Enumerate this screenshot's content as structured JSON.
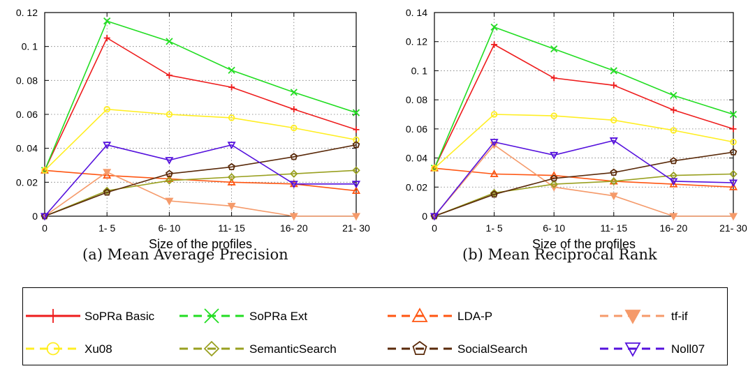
{
  "captions": {
    "a": "(a) Mean Average Precision",
    "b": "(b) Mean Reciprocal Rank"
  },
  "chart_data": [
    {
      "type": "line",
      "xlabel": "Size of the profiles",
      "ylabel": "",
      "categories": [
        "0",
        "1- 5",
        "6- 10",
        "11- 15",
        "16- 20",
        "21- 30"
      ],
      "ylim": [
        0,
        0.12
      ],
      "yticks": [
        "0",
        "0. 02",
        "0. 04",
        "0. 06",
        "0. 08",
        "0. 1",
        "0. 12"
      ],
      "grid": true,
      "series": [
        {
          "name": "SoPRa Basic",
          "values": [
            0.027,
            0.105,
            0.083,
            0.076,
            0.063,
            0.051
          ]
        },
        {
          "name": "SoPRa Ext",
          "values": [
            0.027,
            0.115,
            0.103,
            0.086,
            0.073,
            0.061
          ]
        },
        {
          "name": "LDA-P",
          "values": [
            0.027,
            0.024,
            0.022,
            0.02,
            0.019,
            0.015
          ]
        },
        {
          "name": "tf-if",
          "values": [
            0,
            0.026,
            0.009,
            0.006,
            0,
            0
          ]
        },
        {
          "name": "Xu08",
          "values": [
            0.027,
            0.063,
            0.06,
            0.058,
            0.052,
            0.045
          ]
        },
        {
          "name": "SemanticSearch",
          "values": [
            0,
            0.015,
            0.021,
            0.023,
            0.025,
            0.027
          ]
        },
        {
          "name": "SocialSearch",
          "values": [
            0,
            0.014,
            0.025,
            0.029,
            0.035,
            0.042
          ]
        },
        {
          "name": "Noll07",
          "values": [
            0,
            0.042,
            0.033,
            0.042,
            0.019,
            0.019
          ]
        }
      ]
    },
    {
      "type": "line",
      "xlabel": "Size of the profiles",
      "ylabel": "",
      "categories": [
        "0",
        "1- 5",
        "6- 10",
        "11- 15",
        "16- 20",
        "21- 30"
      ],
      "ylim": [
        0,
        0.14
      ],
      "yticks": [
        "0",
        "0. 02",
        "0. 04",
        "0. 06",
        "0. 08",
        "0. 1",
        "0. 12",
        "0. 14"
      ],
      "grid": true,
      "series": [
        {
          "name": "SoPRa Basic",
          "values": [
            0.033,
            0.118,
            0.095,
            0.09,
            0.073,
            0.06
          ]
        },
        {
          "name": "SoPRa Ext",
          "values": [
            0.033,
            0.13,
            0.115,
            0.1,
            0.083,
            0.07
          ]
        },
        {
          "name": "LDA-P",
          "values": [
            0.033,
            0.029,
            0.028,
            0.024,
            0.022,
            0.02
          ]
        },
        {
          "name": "tf-if",
          "values": [
            0,
            0.049,
            0.02,
            0.014,
            0,
            0
          ]
        },
        {
          "name": "Xu08",
          "values": [
            0.033,
            0.07,
            0.069,
            0.066,
            0.059,
            0.051
          ]
        },
        {
          "name": "SemanticSearch",
          "values": [
            0,
            0.016,
            0.022,
            0.024,
            0.028,
            0.029
          ]
        },
        {
          "name": "SocialSearch",
          "values": [
            0,
            0.015,
            0.026,
            0.03,
            0.038,
            0.044
          ]
        },
        {
          "name": "Noll07",
          "values": [
            0,
            0.051,
            0.042,
            0.052,
            0.024,
            0.023
          ]
        }
      ]
    }
  ],
  "legend": [
    {
      "label": "SoPRa Basic",
      "color": "#ee1c1c",
      "marker": "plus",
      "dash": "solid"
    },
    {
      "label": "SoPRa Ext",
      "color": "#22dd22",
      "marker": "cross",
      "dash": "dashed"
    },
    {
      "label": "LDA-P",
      "color": "#ff5511",
      "marker": "triangle-up",
      "dash": "dashed"
    },
    {
      "label": "tf-if",
      "color": "#f59a6a",
      "marker": "triangle-down-filled",
      "dash": "dashed"
    },
    {
      "label": "Xu08",
      "color": "#ffee22",
      "marker": "circle",
      "dash": "dashed"
    },
    {
      "label": "SemanticSearch",
      "color": "#99a020",
      "marker": "diamond",
      "dash": "dashed"
    },
    {
      "label": "SocialSearch",
      "color": "#5a2a0a",
      "marker": "pentagon",
      "dash": "dashed"
    },
    {
      "label": "Noll07",
      "color": "#5511dd",
      "marker": "triangle-down",
      "dash": "dashed"
    }
  ]
}
